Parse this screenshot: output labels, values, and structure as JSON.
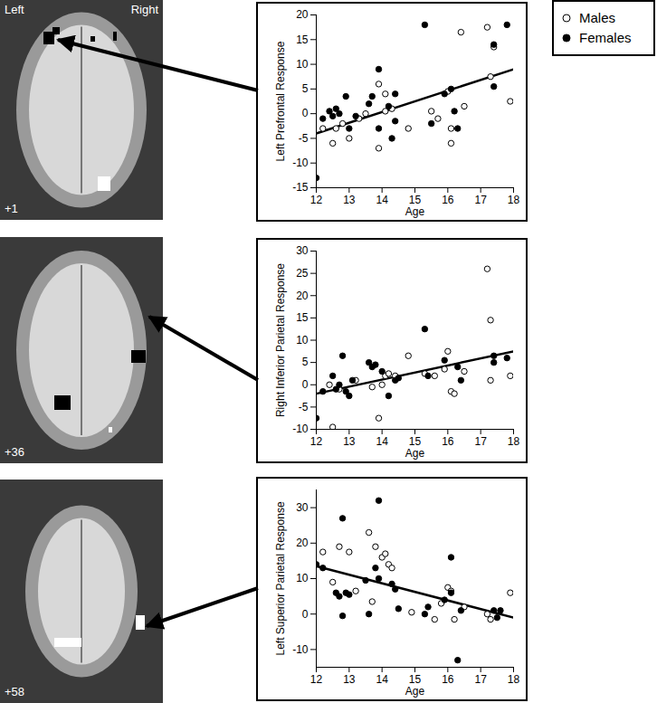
{
  "chart_data": [
    {
      "type": "scatter",
      "ylabel": "Left Prefrontal Response",
      "xlabel": "Age",
      "xlim": [
        12,
        18
      ],
      "xticks": [
        12,
        13,
        14,
        15,
        16,
        17,
        18
      ],
      "ylim": [
        -15,
        20
      ],
      "yticks": [
        -15,
        -10,
        -5,
        0,
        5,
        10,
        15,
        20
      ],
      "series": [
        {
          "name": "Males",
          "color": "#000000",
          "marker": "open circle",
          "x": [
            12.2,
            12.5,
            12.6,
            12.8,
            13.0,
            13.3,
            13.5,
            13.9,
            13.9,
            14.1,
            14.1,
            14.3,
            14.8,
            15.5,
            15.7,
            16.0,
            16.1,
            16.1,
            16.4,
            16.5,
            17.2,
            17.3,
            17.4,
            17.9
          ],
          "values": [
            -3,
            -6,
            -3,
            -2,
            -5,
            -1,
            0,
            6,
            -7,
            4,
            0.5,
            1,
            -3,
            0.5,
            -1,
            4.5,
            -6,
            -3,
            16.5,
            1.5,
            17.5,
            7.5,
            13.5,
            2.5
          ]
        },
        {
          "name": "Females",
          "color": "#000000",
          "marker": "filled circle",
          "x": [
            12.0,
            12.2,
            12.4,
            12.5,
            12.6,
            12.7,
            12.9,
            13.0,
            13.2,
            13.6,
            13.7,
            13.9,
            13.9,
            14.2,
            14.3,
            14.4,
            14.4,
            15.3,
            15.5,
            15.9,
            16.1,
            16.2,
            16.3,
            17.4,
            17.4,
            17.8
          ],
          "values": [
            -13,
            -1,
            0.5,
            -0.5,
            1,
            0,
            3.5,
            -3,
            -0.5,
            2,
            3.5,
            9,
            -3,
            1.5,
            -5,
            4,
            -1.5,
            18,
            -2,
            4,
            5,
            0.5,
            -3,
            14,
            5.5,
            18
          ]
        }
      ],
      "fit": {
        "x": [
          12,
          18
        ],
        "values": [
          -4,
          9
        ]
      }
    },
    {
      "type": "scatter",
      "ylabel": "Right Inferior Parietal Response",
      "xlabel": "Age",
      "xlim": [
        12,
        18
      ],
      "xticks": [
        12,
        13,
        14,
        15,
        16,
        17,
        18
      ],
      "ylim": [
        -10,
        30
      ],
      "yticks": [
        -10,
        -5,
        0,
        5,
        10,
        15,
        20,
        25,
        30
      ],
      "series": [
        {
          "name": "Males",
          "color": "#000000",
          "marker": "open circle",
          "x": [
            12.4,
            12.5,
            12.7,
            13.2,
            13.7,
            13.9,
            14.0,
            14.1,
            14.2,
            14.4,
            14.8,
            15.3,
            15.6,
            15.9,
            16.0,
            16.1,
            16.2,
            16.5,
            17.2,
            17.3,
            17.3,
            17.9
          ],
          "values": [
            0,
            -9.5,
            -1,
            1,
            -0.5,
            -7.5,
            0,
            2,
            2.5,
            2,
            6.5,
            2.5,
            2,
            3.5,
            7.5,
            -1.5,
            -2,
            3,
            26,
            14.5,
            1,
            2
          ]
        },
        {
          "name": "Females",
          "color": "#000000",
          "marker": "filled circle",
          "x": [
            12.0,
            12.2,
            12.5,
            12.6,
            12.7,
            12.8,
            12.9,
            13.0,
            13.1,
            13.6,
            13.7,
            13.8,
            14.0,
            14.2,
            14.4,
            14.5,
            15.3,
            15.4,
            15.9,
            16.3,
            16.4,
            17.4,
            17.4,
            17.8
          ],
          "values": [
            -7.5,
            -1.5,
            2,
            -1,
            0,
            6.5,
            -1.5,
            -2.5,
            1,
            5,
            4,
            4.5,
            3,
            -2.5,
            1,
            1.5,
            12.5,
            2,
            5.5,
            4,
            1,
            5,
            6.5,
            6
          ]
        }
      ],
      "fit": {
        "x": [
          12,
          18
        ],
        "values": [
          -2,
          7.5
        ]
      }
    },
    {
      "type": "scatter",
      "ylabel": "Left Superior Parietal Response",
      "xlabel": "Age",
      "xlim": [
        12,
        18
      ],
      "xticks": [
        12,
        13,
        14,
        15,
        16,
        17,
        18
      ],
      "ylim": [
        -15,
        35
      ],
      "yticks": [
        -10,
        0,
        10,
        20,
        30
      ],
      "series": [
        {
          "name": "Males",
          "color": "#000000",
          "marker": "open circle",
          "x": [
            12.2,
            12.5,
            12.7,
            13.0,
            13.2,
            13.6,
            13.7,
            13.8,
            14.0,
            14.1,
            14.2,
            14.3,
            14.9,
            15.6,
            15.8,
            16.0,
            16.1,
            16.2,
            16.5,
            17.2,
            17.3,
            17.9
          ],
          "values": [
            17.5,
            9,
            19,
            17.5,
            6.5,
            23,
            3.5,
            19,
            16,
            17,
            14,
            13,
            0.5,
            -1.5,
            3,
            7.5,
            6.5,
            -1.5,
            2,
            0,
            -1.5,
            6
          ]
        },
        {
          "name": "Females",
          "color": "#000000",
          "marker": "filled circle",
          "x": [
            12.0,
            12.2,
            12.6,
            12.7,
            12.8,
            12.8,
            12.9,
            13.0,
            13.5,
            13.6,
            13.8,
            13.9,
            13.9,
            14.3,
            14.4,
            14.5,
            15.3,
            15.4,
            15.9,
            16.1,
            16.1,
            16.3,
            16.4,
            17.4,
            17.5,
            17.6
          ],
          "values": [
            14,
            13,
            6,
            5,
            27,
            -0.5,
            6,
            5.5,
            9.5,
            0,
            13,
            32,
            10,
            8.5,
            7,
            1.5,
            0,
            2,
            4,
            16,
            6,
            -13,
            1,
            1,
            -1,
            1
          ]
        }
      ],
      "fit": {
        "x": [
          12,
          18
        ],
        "values": [
          13.5,
          -1
        ]
      }
    }
  ],
  "brain_slices": [
    {
      "side_labels": [
        "Left",
        "Right"
      ],
      "slice_label": "+1"
    },
    {
      "slice_label": "+36"
    },
    {
      "slice_label": "+58"
    }
  ]
}
